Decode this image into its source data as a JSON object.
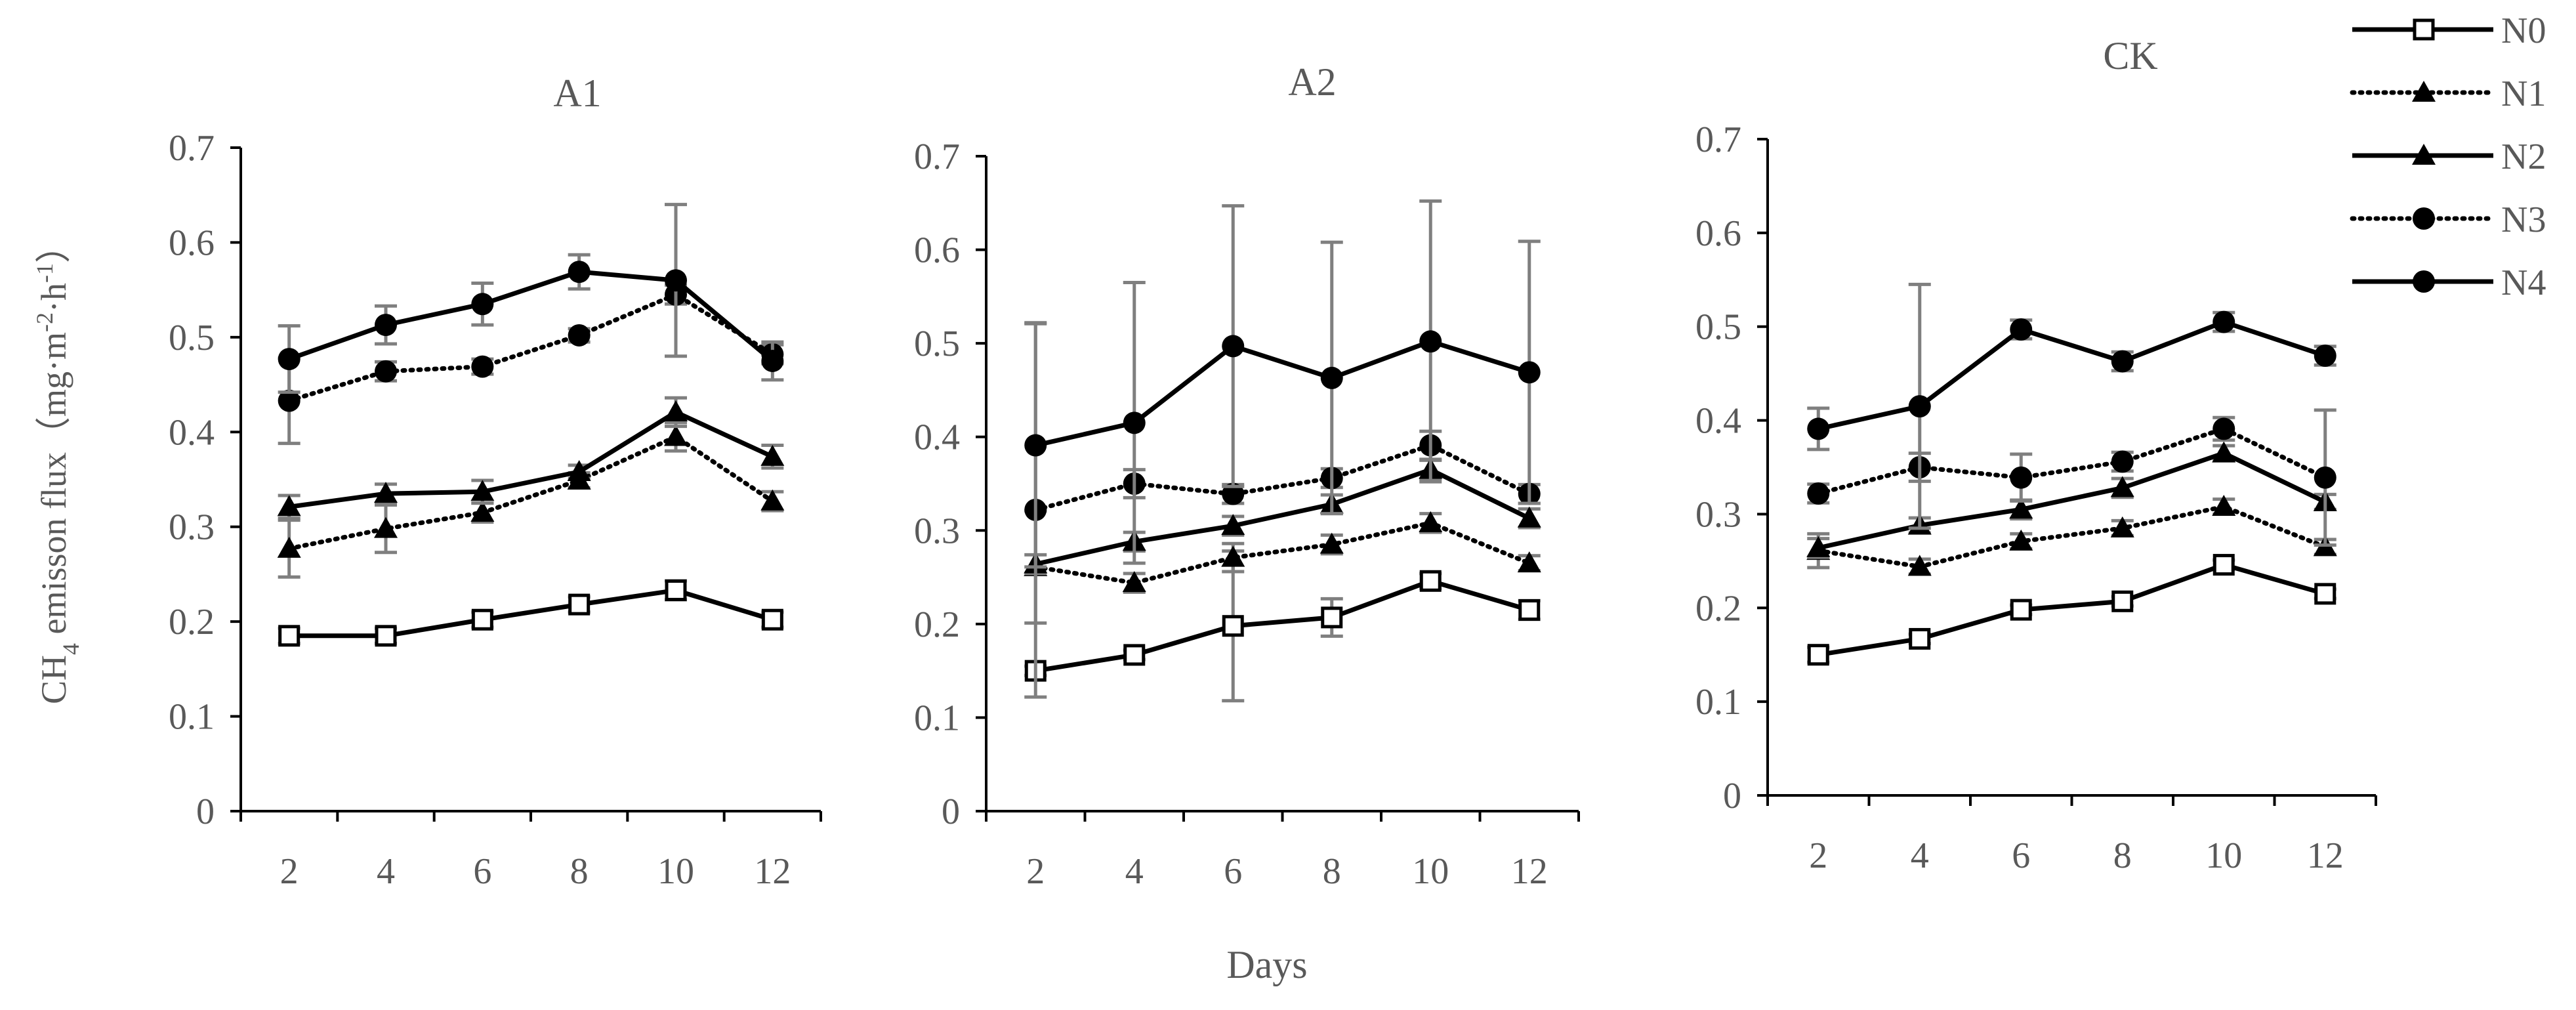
{
  "chart_data": {
    "type": "line",
    "ylabel": "CH4 emisson flux（mg·m-2·h-1）",
    "xlabel": "Days",
    "x": [
      2,
      4,
      6,
      8,
      10,
      12
    ],
    "xlim": [
      1,
      13
    ],
    "ylim": [
      0,
      0.7
    ],
    "yticks": [
      "0",
      "0.1",
      "0.2",
      "0.3",
      "0.4",
      "0.5",
      "0.6",
      "0.7"
    ],
    "xticks": [
      "2",
      "4",
      "6",
      "8",
      "10",
      "12"
    ],
    "legend": [
      {
        "name": "N0",
        "line": "solid",
        "marker": "open-square"
      },
      {
        "name": "N1",
        "line": "dotted",
        "marker": "triangle"
      },
      {
        "name": "N2",
        "line": "solid",
        "marker": "triangle"
      },
      {
        "name": "N3",
        "line": "dotted",
        "marker": "circle"
      },
      {
        "name": "N4",
        "line": "solid",
        "marker": "circle"
      }
    ],
    "panels": [
      {
        "title": "A1",
        "series": [
          {
            "name": "N0",
            "x": [
              2,
              4,
              6,
              8,
              10,
              12
            ],
            "values": [
              0.185,
              0.185,
              0.202,
              0.218,
              0.233,
              0.202
            ],
            "errors": [
              0.008,
              0.008,
              0.008,
              0.008,
              0.01,
              0.008
            ]
          },
          {
            "name": "N1",
            "x": [
              2,
              4,
              6,
              8,
              10,
              12
            ],
            "values": [
              0.277,
              0.298,
              0.315,
              0.349,
              0.395,
              0.327
            ],
            "errors": [
              0.03,
              0.025,
              0.01,
              0.008,
              0.015,
              0.01
            ]
          },
          {
            "name": "N2",
            "x": [
              2,
              4,
              6,
              8,
              10,
              12
            ],
            "values": [
              0.321,
              0.335,
              0.337,
              0.358,
              0.421,
              0.374
            ],
            "errors": [
              0.012,
              0.01,
              0.012,
              0.007,
              0.015,
              0.012
            ]
          },
          {
            "name": "N3",
            "x": [
              2,
              4,
              6,
              8,
              10,
              12
            ],
            "values": [
              0.433,
              0.464,
              0.469,
              0.502,
              0.545,
              0.482
            ],
            "errors": [
              0.045,
              0.01,
              0.008,
              0.007,
              0.01,
              0.01
            ]
          },
          {
            "name": "N4",
            "x": [
              2,
              4,
              6,
              8,
              10,
              12
            ],
            "values": [
              0.477,
              0.513,
              0.535,
              0.569,
              0.56,
              0.475
            ],
            "errors": [
              0.035,
              0.02,
              0.022,
              0.018,
              0.08,
              0.02
            ]
          }
        ]
      },
      {
        "title": "A2",
        "series": [
          {
            "name": "N0",
            "x": [
              2,
              4,
              6,
              8,
              10,
              12
            ],
            "values": [
              0.15,
              0.167,
              0.198,
              0.207,
              0.246,
              0.215
            ],
            "errors": [
              0.005,
              0.005,
              0.08,
              0.02,
              0.008,
              0.01
            ]
          },
          {
            "name": "N1",
            "x": [
              2,
              4,
              6,
              8,
              10,
              12
            ],
            "values": [
              0.261,
              0.244,
              0.271,
              0.285,
              0.308,
              0.265
            ],
            "errors": [
              0.06,
              0.01,
              0.015,
              0.01,
              0.01,
              0.008
            ]
          },
          {
            "name": "N2",
            "x": [
              2,
              4,
              6,
              8,
              10,
              12
            ],
            "values": [
              0.264,
              0.288,
              0.305,
              0.328,
              0.365,
              0.313
            ],
            "errors": [
              0.01,
              0.01,
              0.01,
              0.01,
              0.01,
              0.01
            ]
          },
          {
            "name": "N3",
            "x": [
              2,
              4,
              6,
              8,
              10,
              12
            ],
            "values": [
              0.322,
              0.35,
              0.339,
              0.356,
              0.391,
              0.339
            ],
            "errors": [
              0.2,
              0.015,
              0.01,
              0.01,
              0.015,
              0.01
            ]
          },
          {
            "name": "N4",
            "x": [
              2,
              4,
              6,
              8,
              10,
              12
            ],
            "values": [
              0.391,
              0.415,
              0.497,
              0.463,
              0.502,
              0.469
            ],
            "errors": [
              0.13,
              0.15,
              0.15,
              0.145,
              0.15,
              0.14
            ]
          }
        ]
      },
      {
        "title": "CK",
        "series": [
          {
            "name": "N0",
            "x": [
              2,
              4,
              6,
              8,
              10,
              12
            ],
            "values": [
              0.15,
              0.167,
              0.198,
              0.207,
              0.246,
              0.215
            ],
            "errors": [
              0.008,
              0.005,
              0.005,
              0.005,
              0.005,
              0.005
            ]
          },
          {
            "name": "N1",
            "x": [
              2,
              4,
              6,
              8,
              10,
              12
            ],
            "values": [
              0.261,
              0.244,
              0.271,
              0.285,
              0.308,
              0.265
            ],
            "errors": [
              0.018,
              0.008,
              0.008,
              0.008,
              0.008,
              0.008
            ]
          },
          {
            "name": "N2",
            "x": [
              2,
              4,
              6,
              8,
              10,
              12
            ],
            "values": [
              0.264,
              0.288,
              0.305,
              0.328,
              0.365,
              0.313
            ],
            "errors": [
              0.01,
              0.008,
              0.01,
              0.01,
              0.008,
              0.008
            ]
          },
          {
            "name": "N3",
            "x": [
              2,
              4,
              6,
              8,
              10,
              12
            ],
            "values": [
              0.322,
              0.35,
              0.339,
              0.356,
              0.391,
              0.339
            ],
            "errors": [
              0.01,
              0.015,
              0.025,
              0.01,
              0.012,
              0.072
            ]
          },
          {
            "name": "N4",
            "x": [
              2,
              4,
              6,
              8,
              10,
              12
            ],
            "values": [
              0.391,
              0.415,
              0.497,
              0.463,
              0.505,
              0.469
            ],
            "errors": [
              0.022,
              0.13,
              0.01,
              0.01,
              0.01,
              0.01
            ]
          }
        ]
      }
    ]
  }
}
